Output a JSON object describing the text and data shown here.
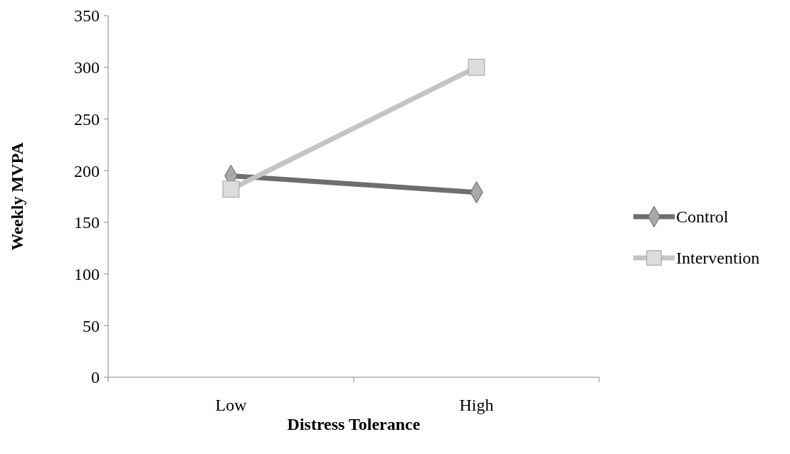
{
  "chart_data": {
    "type": "line",
    "xlabel": "Distress Tolerance",
    "ylabel": "Weekly MVPA",
    "categories": [
      "Low",
      "High"
    ],
    "series": [
      {
        "name": "Control",
        "color": "#6e6e6e",
        "values": [
          195,
          179
        ],
        "marker": "diamond"
      },
      {
        "name": "Intervention",
        "color": "#c4c4c4",
        "values": [
          182,
          300
        ],
        "marker": "square"
      }
    ],
    "ylim": [
      0,
      350
    ],
    "yticks": [
      0,
      50,
      100,
      150,
      200,
      250,
      300,
      350
    ],
    "grid": false,
    "legend": "right",
    "line_style": "solid"
  }
}
